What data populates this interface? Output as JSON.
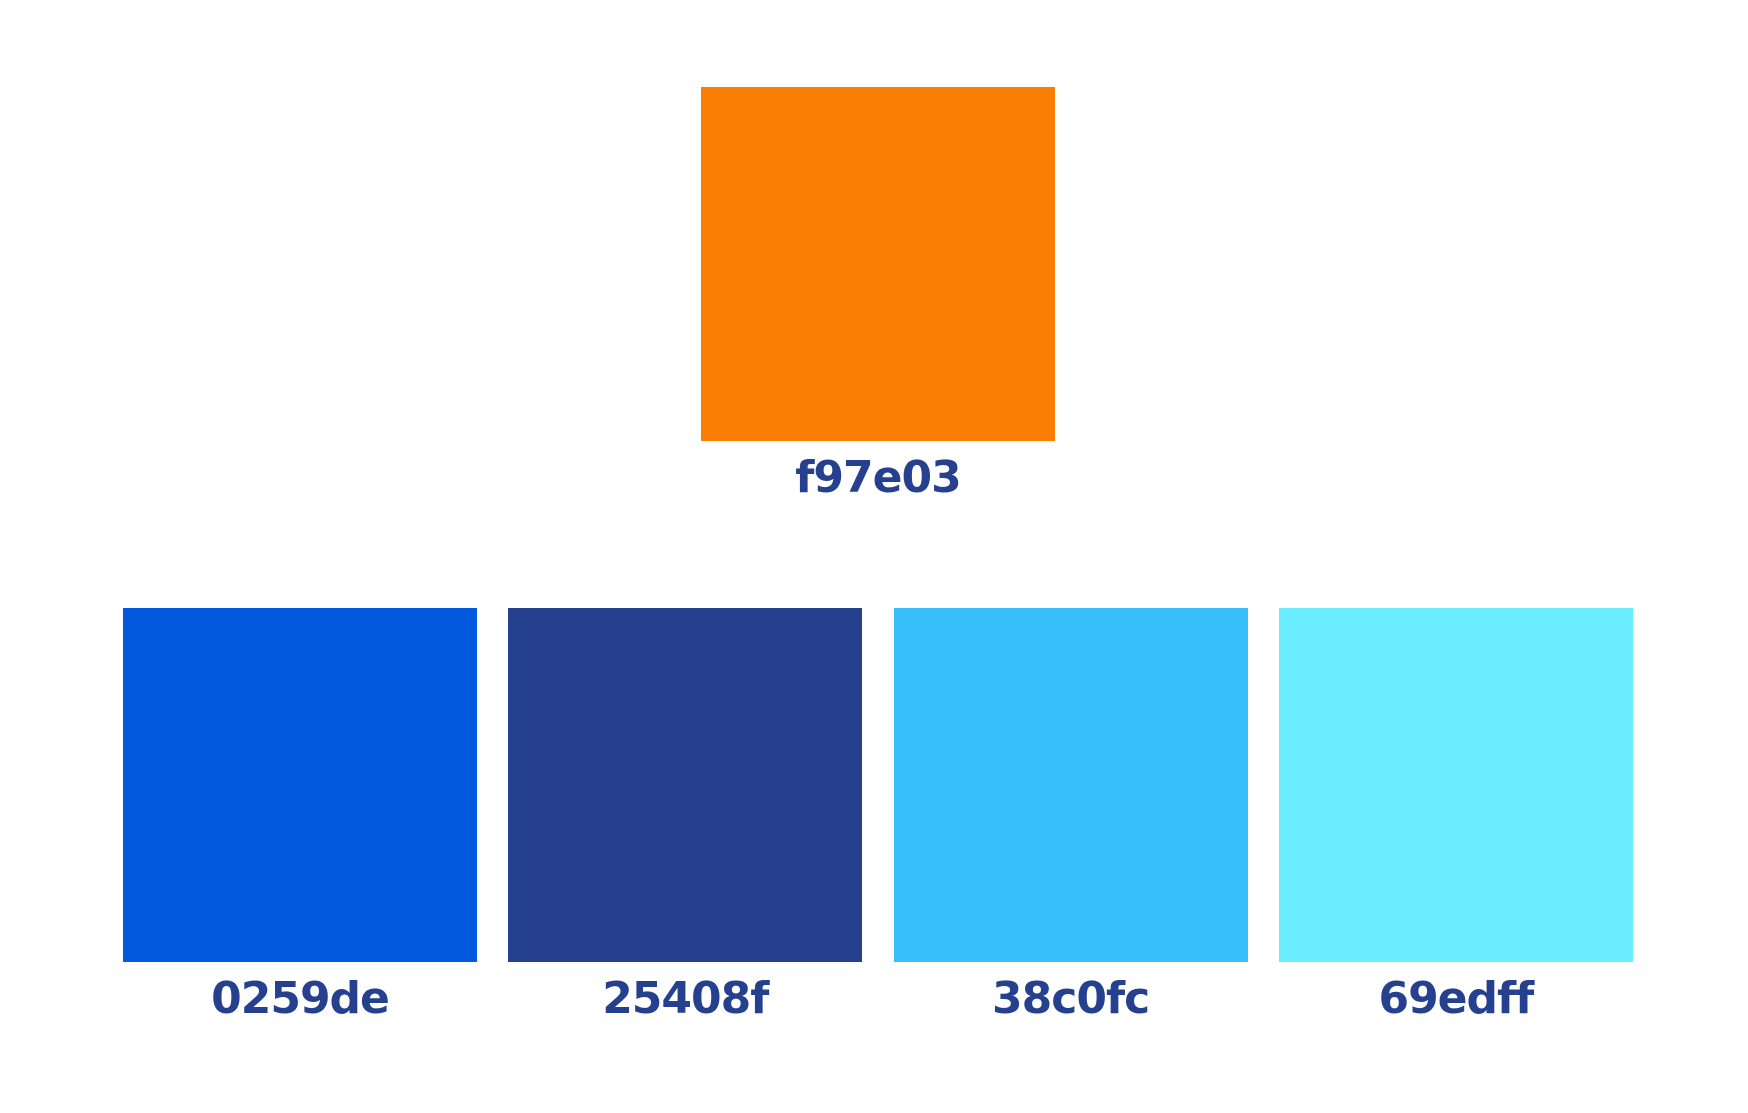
{
  "palette": {
    "primary": {
      "label": "f97e03",
      "color": "#f97e03"
    },
    "swatches": [
      {
        "label": "0259de",
        "color": "#0259de"
      },
      {
        "label": "25408f",
        "color": "#25408f"
      },
      {
        "label": "38c0fc",
        "color": "#38c0fc"
      },
      {
        "label": "69edff",
        "color": "#69edff"
      }
    ]
  }
}
